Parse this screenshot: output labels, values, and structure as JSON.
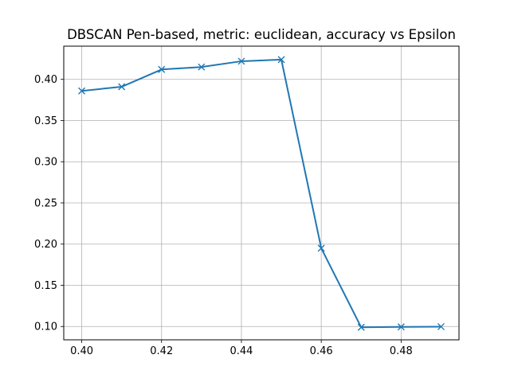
{
  "chart_data": {
    "type": "line",
    "title": "DBSCAN Pen-based, metric: euclidean, accuracy vs Epsilon",
    "xlabel": "",
    "ylabel": "",
    "x": [
      0.4,
      0.41,
      0.42,
      0.43,
      0.44,
      0.45,
      0.46,
      0.47,
      0.48,
      0.49
    ],
    "series": [
      {
        "values": [
          0.386,
          0.391,
          0.412,
          0.415,
          0.422,
          0.424,
          0.195,
          0.099,
          0.0995,
          0.0998
        ],
        "color": "#1f77b4",
        "marker": "x"
      }
    ],
    "xlim": [
      0.3955,
      0.4945
    ],
    "ylim": [
      0.0838,
      0.4403
    ],
    "xticks": [
      "0.40",
      "0.42",
      "0.44",
      "0.46",
      "0.48"
    ],
    "yticks": [
      "0.10",
      "0.15",
      "0.20",
      "0.25",
      "0.30",
      "0.35",
      "0.40"
    ],
    "grid": true
  }
}
